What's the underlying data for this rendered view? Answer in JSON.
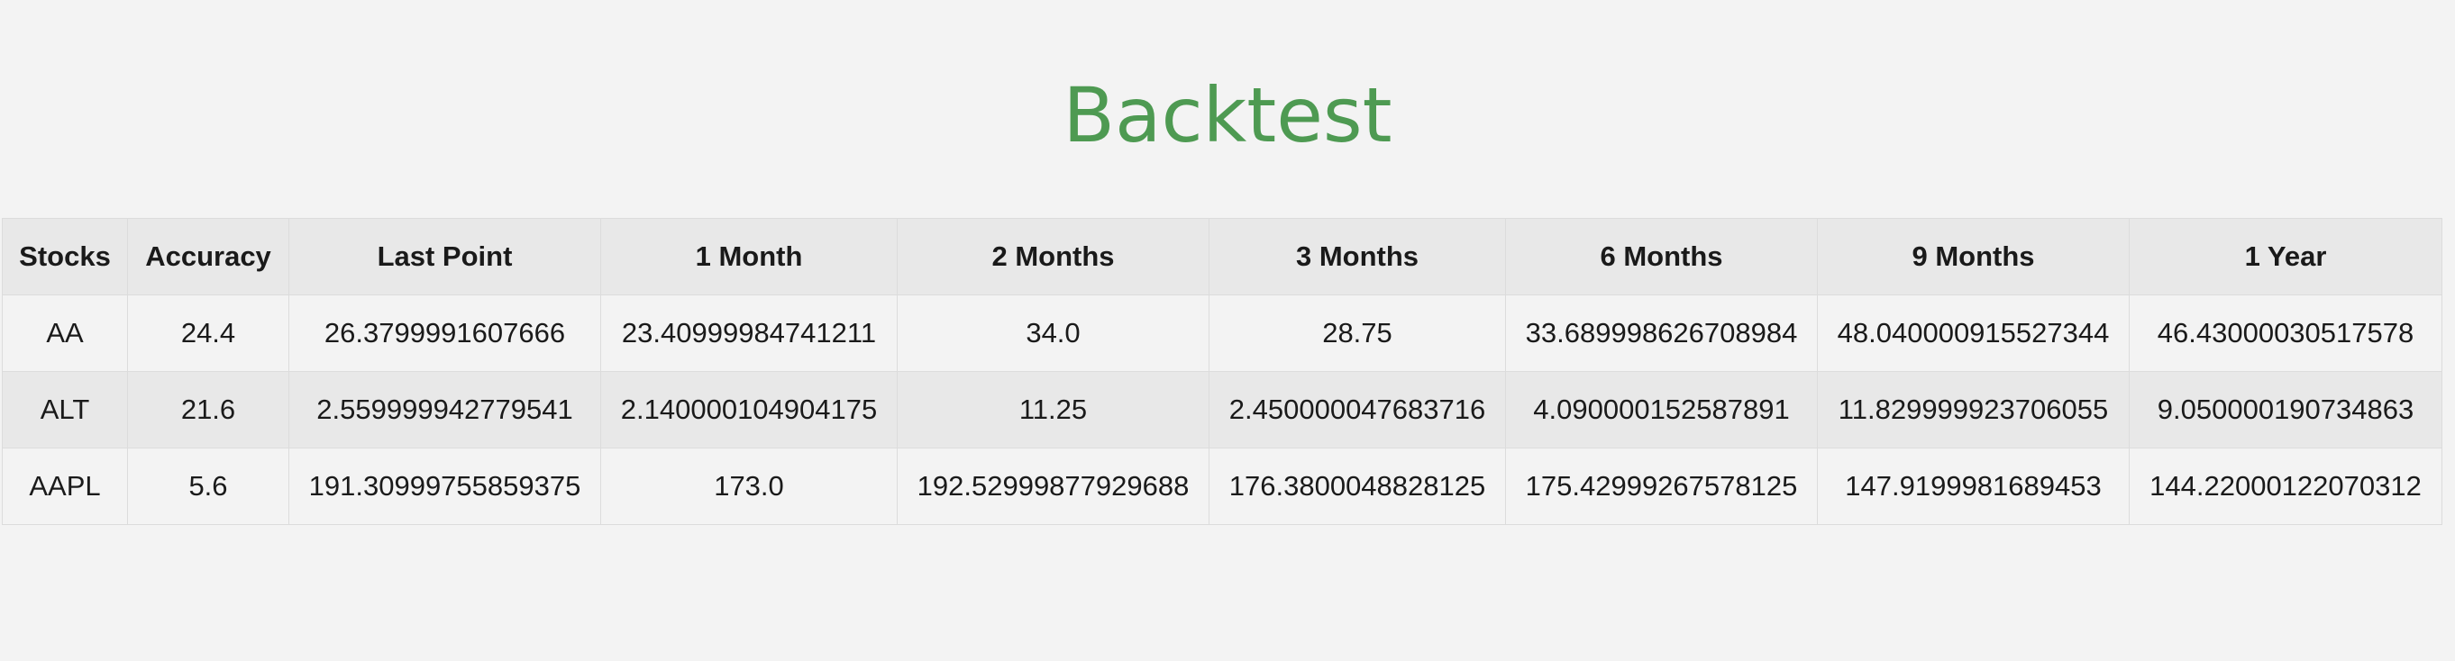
{
  "page": {
    "title": "Backtest"
  },
  "table": {
    "headers": [
      "Stocks",
      "Accuracy",
      "Last Point",
      "1 Month",
      "2 Months",
      "3 Months",
      "6 Months",
      "9 Months",
      "1 Year"
    ],
    "rows": [
      [
        "AA",
        "24.4",
        "26.3799991607666",
        "23.40999984741211",
        "34.0",
        "28.75",
        "33.689998626708984",
        "48.040000915527344",
        "46.43000030517578"
      ],
      [
        "ALT",
        "21.6",
        "2.559999942779541",
        "2.140000104904175",
        "11.25",
        "2.450000047683716",
        "4.090000152587891",
        "11.829999923706055",
        "9.050000190734863"
      ],
      [
        "AAPL",
        "5.6",
        "191.30999755859375",
        "173.0",
        "192.52999877929688",
        "176.3800048828125",
        "175.42999267578125",
        "147.9199981689453",
        "144.22000122070312"
      ]
    ]
  },
  "colors": {
    "title": "#4e9a52",
    "background": "#f3f3f3",
    "header_bg": "#e8e8e8",
    "border": "#dcdcdc"
  }
}
